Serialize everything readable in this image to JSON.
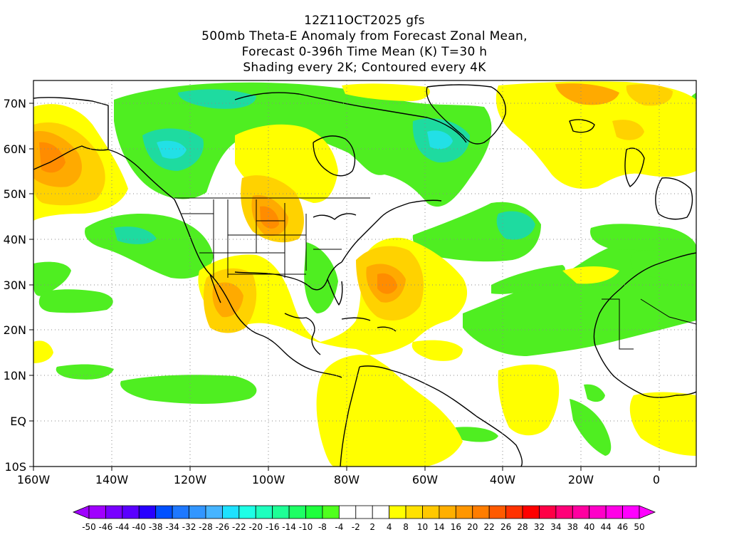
{
  "title": {
    "line1": "12Z11OCT2025 gfs",
    "line2": "500mb Theta-E Anomaly from Forecast Zonal Mean,",
    "line3": "Forecast 0-396h Time Mean (K) T=30 h",
    "line4": "Shading every 2K; Contoured every 4K"
  },
  "axes": {
    "lat_labels": [
      "70N",
      "60N",
      "50N",
      "40N",
      "30N",
      "20N",
      "10N",
      "EQ",
      "10S"
    ],
    "lon_labels": [
      "160W",
      "140W",
      "120W",
      "100W",
      "80W",
      "60W",
      "40W",
      "20W",
      "0"
    ]
  },
  "colorbar": {
    "labels": [
      "-50",
      "-46",
      "-44",
      "-40",
      "-38",
      "-34",
      "-32",
      "-28",
      "-26",
      "-22",
      "-20",
      "-16",
      "-14",
      "-10",
      "-8",
      "-4",
      "-2",
      "2",
      "4",
      "8",
      "10",
      "14",
      "16",
      "20",
      "22",
      "26",
      "28",
      "32",
      "34",
      "38",
      "40",
      "44",
      "46",
      "50"
    ],
    "colors": [
      "#a000ff",
      "#7800ff",
      "#5a00ff",
      "#2800ff",
      "#0050ff",
      "#1e78ff",
      "#3296ff",
      "#46b4ff",
      "#1ee1ff",
      "#1effe6",
      "#1effbe",
      "#1eff96",
      "#1eff64",
      "#1eff3c",
      "#50ff1e",
      "#ffffff",
      "#ffffff",
      "#ffffff",
      "#ffff00",
      "#ffe100",
      "#ffc800",
      "#ffaf00",
      "#ff9600",
      "#ff7d00",
      "#ff5a00",
      "#ff3200",
      "#ff0000",
      "#ff0046",
      "#ff0078",
      "#ff00a0",
      "#ff00c8",
      "#ff00e6",
      "#ff00ff"
    ]
  },
  "colors": {
    "green": "#4fee21",
    "teal": "#1edba0",
    "cyan": "#22e0e6",
    "yellow": "#ffff00",
    "gold": "#ffd200",
    "orange": "#ffaa00",
    "dark_orange": "#ff8c00"
  }
}
